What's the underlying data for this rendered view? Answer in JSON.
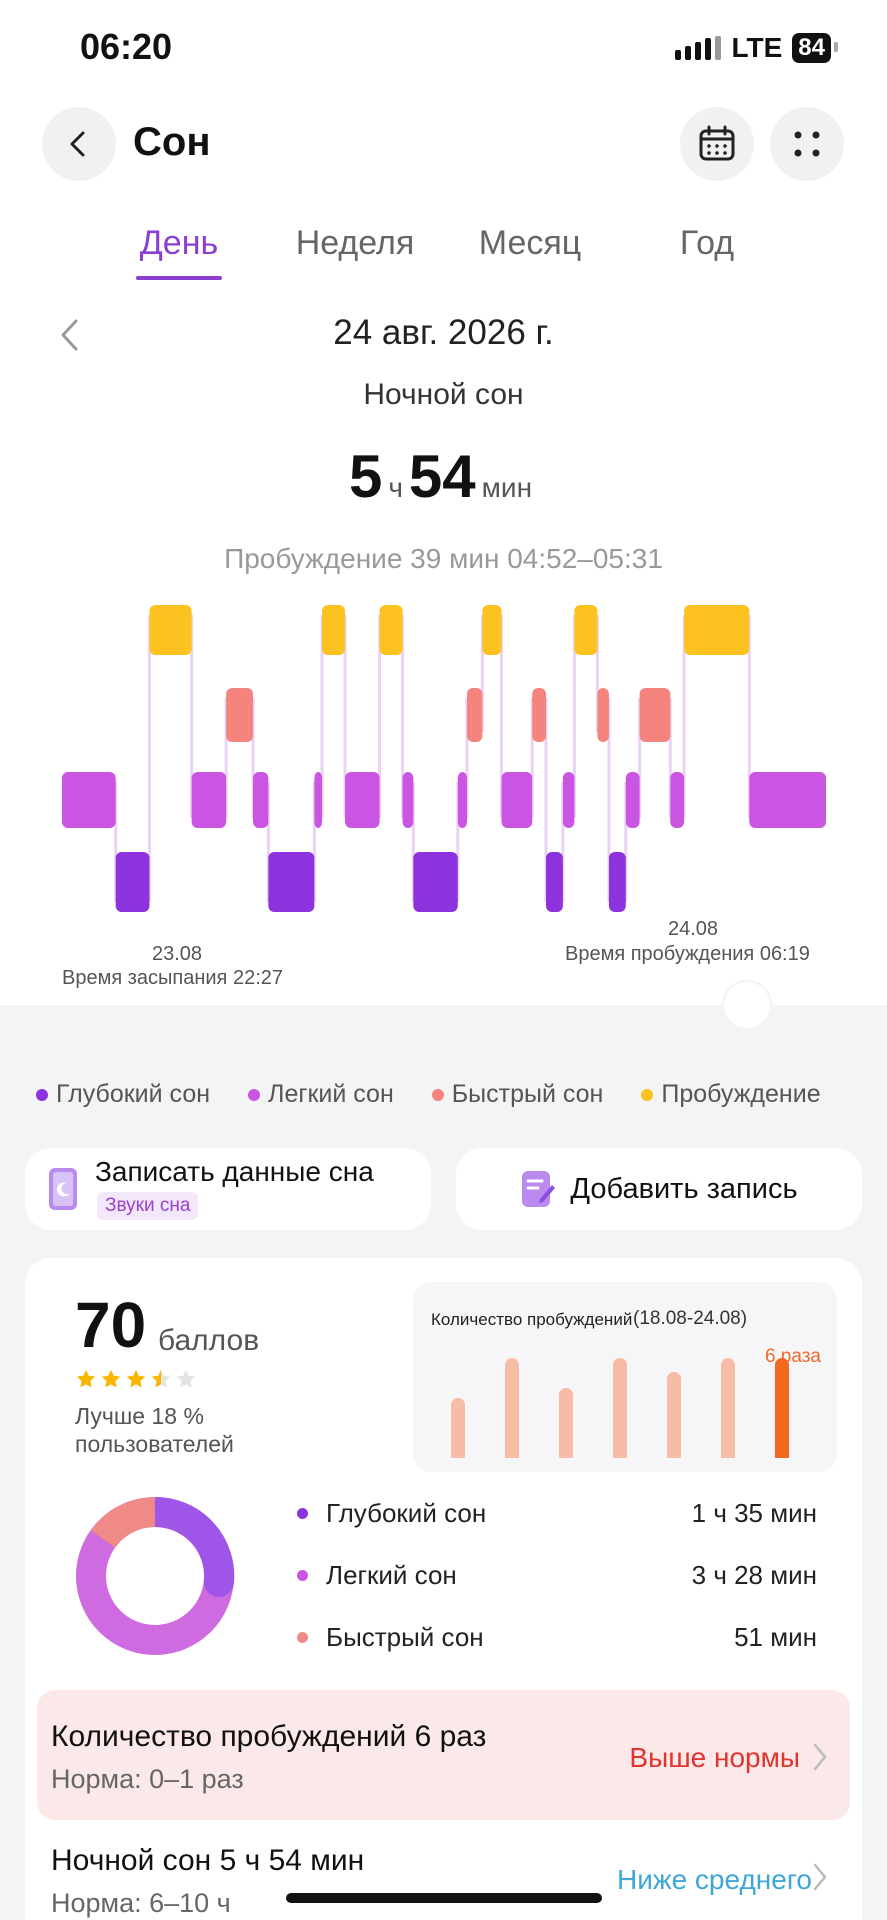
{
  "status_bar": {
    "time": "06:20",
    "network": "LTE",
    "battery": "84"
  },
  "header": {
    "title": "Сон",
    "back_icon": "chevron-left-icon",
    "calendar_icon": "calendar-icon",
    "more_icon": "grid-dots-icon"
  },
  "tabs": [
    {
      "label": "День",
      "active": true
    },
    {
      "label": "Неделя",
      "active": false
    },
    {
      "label": "Месяц",
      "active": false
    },
    {
      "label": "Год",
      "active": false
    }
  ],
  "summary": {
    "date": "24 авг. 2026 г.",
    "label": "Ночной сон",
    "hours": "5",
    "hours_unit": "ч",
    "minutes": "54",
    "minutes_unit": "мин",
    "wake_info": "Пробуждение 39 мин 04:52–05:31"
  },
  "chart_data": {
    "type": "sleep-hypnogram",
    "stages": [
      "Пробуждение",
      "Быстрый сон",
      "Легкий сон",
      "Глубокий сон"
    ],
    "colors": {
      "Пробуждение": "#fcc21f",
      "Быстрый сон": "#f5847e",
      "Легкий сон": "#cb55e3",
      "Глубокий сон": "#8d33dd"
    },
    "segments": [
      {
        "stage": "Легкий сон",
        "share": 0.07
      },
      {
        "stage": "Глубокий сон",
        "share": 0.044
      },
      {
        "stage": "Пробуждение",
        "share": 0.055
      },
      {
        "stage": "Легкий сон",
        "share": 0.045
      },
      {
        "stage": "Быстрый сон",
        "share": 0.035
      },
      {
        "stage": "Легкий сон",
        "share": 0.02
      },
      {
        "stage": "Глубокий сон",
        "share": 0.06
      },
      {
        "stage": "Легкий сон",
        "share": 0.01
      },
      {
        "stage": "Пробуждение",
        "share": 0.03
      },
      {
        "stage": "Легкий сон",
        "share": 0.045
      },
      {
        "stage": "Пробуждение",
        "share": 0.03
      },
      {
        "stage": "Легкий сон",
        "share": 0.014
      },
      {
        "stage": "Глубокий сон",
        "share": 0.058
      },
      {
        "stage": "Легкий сон",
        "share": 0.012
      },
      {
        "stage": "Быстрый сон",
        "share": 0.02
      },
      {
        "stage": "Пробуждение",
        "share": 0.025
      },
      {
        "stage": "Легкий сон",
        "share": 0.04
      },
      {
        "stage": "Быстрый сон",
        "share": 0.018
      },
      {
        "stage": "Глубокий сон",
        "share": 0.022
      },
      {
        "stage": "Легкий сон",
        "share": 0.015
      },
      {
        "stage": "Пробуждение",
        "share": 0.03
      },
      {
        "stage": "Быстрый сон",
        "share": 0.015
      },
      {
        "stage": "Глубокий сон",
        "share": 0.022
      },
      {
        "stage": "Легкий сон",
        "share": 0.018
      },
      {
        "stage": "Быстрый сон",
        "share": 0.04
      },
      {
        "stage": "Легкий сон",
        "share": 0.018
      },
      {
        "stage": "Пробуждение",
        "share": 0.085
      },
      {
        "stage": "Легкий сон",
        "share": 0.1
      }
    ],
    "start_date": "23.08",
    "start_label": "Время засыпания 22:27",
    "end_date": "24.08",
    "end_label": "Время пробуждения 06:19"
  },
  "legend": [
    {
      "label": "Глубокий сон",
      "color": "#8d33dd"
    },
    {
      "label": "Легкий сон",
      "color": "#cb55e3"
    },
    {
      "label": "Быстрый сон",
      "color": "#f5847e"
    },
    {
      "label": "Пробуждение",
      "color": "#fcc21f"
    }
  ],
  "actions": {
    "record_title": "Записать данные сна",
    "record_tag": "Звуки сна",
    "add_label": "Добавить запись"
  },
  "score": {
    "value": "70",
    "unit": "баллов",
    "stars": 3.5,
    "better": "Лучше 18 % пользователей"
  },
  "wake_count_chart": {
    "title": "Количество пробуждений",
    "range": "(18.08-24.08)",
    "today_value": "6 раза",
    "values": [
      3,
      5,
      3.5,
      5,
      4.3,
      5,
      5
    ]
  },
  "stats": [
    {
      "label": "Глубокий сон",
      "value": "1 ч 35 мин",
      "color": "#8d33dd"
    },
    {
      "label": "Легкий сон",
      "value": "3 ч 28 мин",
      "color": "#cb55e3"
    },
    {
      "label": "Быстрый сон",
      "value": "51 мин",
      "color": "#f5847e"
    }
  ],
  "wake_alert": {
    "title": "Количество пробуждений 6 раз",
    "norm": "Норма: 0–1 раз",
    "status": "Выше нормы"
  },
  "night_sleep": {
    "title": "Ночной сон 5 ч 54 мин",
    "norm": "Норма: 6–10 ч",
    "status": "Ниже среднего"
  }
}
